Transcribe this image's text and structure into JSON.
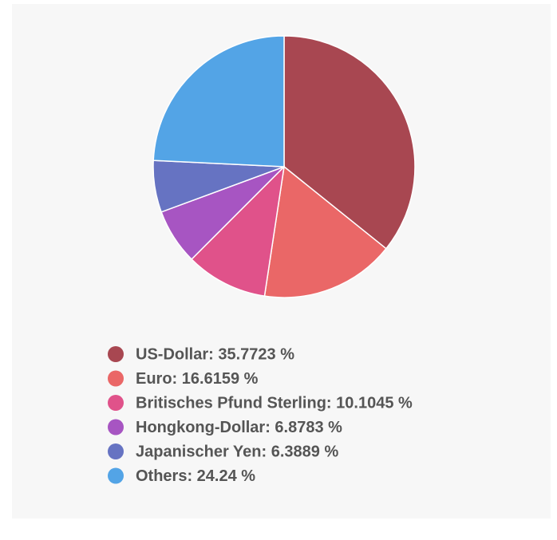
{
  "chart_data": {
    "type": "pie",
    "categories": [
      "US-Dollar: 35.7723 %",
      "Euro: 16.6159 %",
      "Britisches Pfund Sterling: 10.1045 %",
      "Hongkong-Dollar: 6.8783 %",
      "Japanischer Yen: 6.3889 %",
      "Others: 24.24 %"
    ],
    "values": [
      35.7723,
      16.6159,
      10.1045,
      6.8783,
      6.3889,
      24.24
    ],
    "colors": [
      "#a84751",
      "#ea6767",
      "#e0528a",
      "#a755c2",
      "#6673c2",
      "#53a4e6"
    ],
    "legend": "bottom"
  }
}
